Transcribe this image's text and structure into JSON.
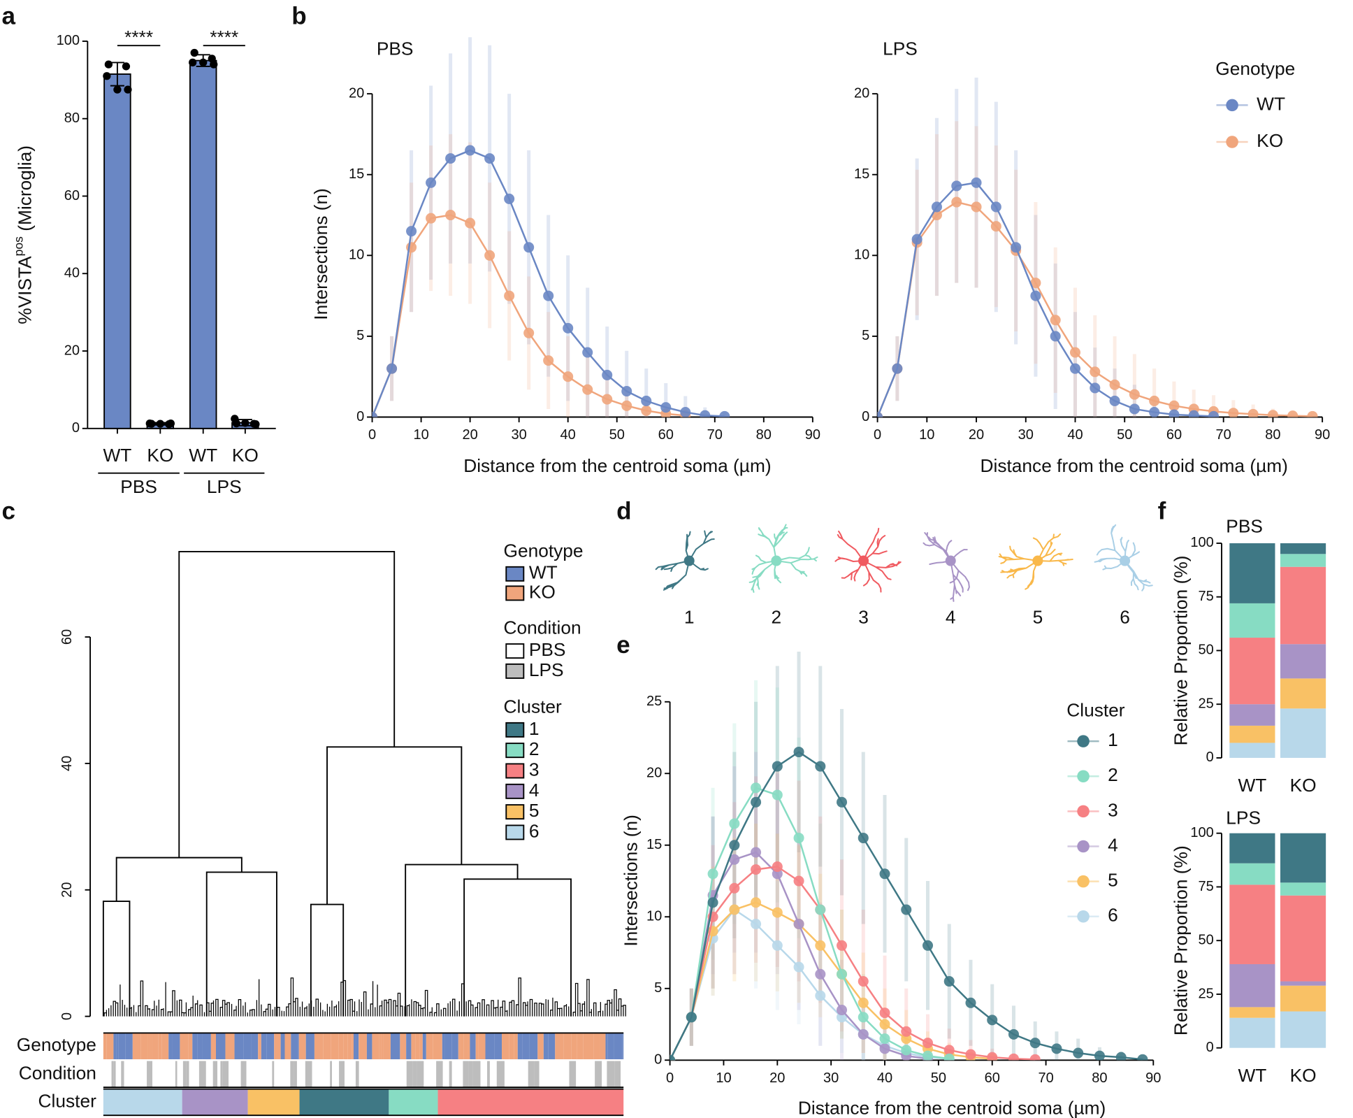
{
  "chart_data": [
    {
      "type": "bar",
      "panel": "a",
      "ylabel": "%VISTA",
      "ylabel_sup": "pos",
      "ylabel_suffix": " (Microglia)",
      "categories": [
        "WT",
        "KO",
        "WT",
        "KO"
      ],
      "groups": [
        "PBS",
        "LPS"
      ],
      "values": [
        91.5,
        1.2,
        95,
        1.5
      ],
      "errors": [
        3,
        0.3,
        1.5,
        0.8
      ],
      "points": [
        [
          94,
          93.5,
          91,
          87.5,
          87.5
        ],
        [
          1.2,
          1.1,
          1.3,
          1.2,
          1.3
        ],
        [
          97,
          95.5,
          94.5,
          94.5,
          94
        ],
        [
          1.3,
          1.2,
          2.5,
          1.4,
          1.1
        ]
      ],
      "color": "#6a87c4",
      "significance": [
        "****",
        "****"
      ],
      "ylim": [
        0,
        100
      ],
      "yticks": [
        0,
        20,
        40,
        60,
        80,
        100
      ]
    },
    {
      "type": "line",
      "panel": "b",
      "title": "PBS",
      "xlabel": "Distance from the centroid soma (µm)",
      "ylabel": "Intersections (n)",
      "x": [
        0,
        4,
        8,
        12,
        16,
        20,
        24,
        28,
        32,
        36,
        40,
        44,
        48,
        52,
        56,
        60,
        64,
        68,
        72,
        76,
        80,
        84,
        88
      ],
      "series": [
        {
          "name": "WT",
          "color": "#6a87c4",
          "values": [
            0,
            3,
            11.5,
            14.5,
            16,
            16.5,
            16,
            13.5,
            10.5,
            7.5,
            5.5,
            4,
            2.6,
            1.6,
            1,
            0.6,
            0.3,
            0.1,
            0.05,
            null,
            null,
            null,
            null
          ],
          "errors": [
            0,
            2,
            5,
            6,
            6.5,
            7,
            7,
            6.5,
            6,
            5,
            4.5,
            4,
            3,
            2.5,
            2,
            1.5,
            1,
            0.5,
            0.2,
            null,
            null,
            null,
            null
          ]
        },
        {
          "name": "KO",
          "color": "#f0a57c",
          "values": [
            0,
            3,
            10.5,
            12.3,
            12.5,
            12,
            10,
            7.5,
            5.2,
            3.5,
            2.5,
            1.7,
            1.1,
            0.7,
            0.4,
            0.2,
            0.1,
            null,
            null,
            null,
            null,
            null,
            null
          ],
          "errors": [
            0,
            2,
            4,
            4.5,
            5,
            5,
            4.5,
            4,
            3.5,
            3,
            2.5,
            2,
            1.5,
            1,
            0.6,
            0.3,
            0.1,
            null,
            null,
            null,
            null,
            null,
            null
          ]
        }
      ],
      "xlim": [
        0,
        90
      ],
      "xticks": [
        0,
        10,
        20,
        30,
        40,
        50,
        60,
        70,
        80,
        90
      ],
      "ylim": [
        0,
        20
      ],
      "yticks": [
        0,
        5,
        10,
        15,
        20
      ]
    },
    {
      "type": "line",
      "title": "LPS",
      "xlabel": "Distance from the centroid soma (µm)",
      "legend_title": "Genotype",
      "x": [
        0,
        4,
        8,
        12,
        16,
        20,
        24,
        28,
        32,
        36,
        40,
        44,
        48,
        52,
        56,
        60,
        64,
        68,
        72,
        76,
        80,
        84,
        88
      ],
      "series": [
        {
          "name": "WT",
          "color": "#6a87c4",
          "values": [
            0,
            3,
            11,
            13,
            14.3,
            14.5,
            13,
            10.5,
            7.5,
            5,
            3,
            1.8,
            1,
            0.5,
            0.3,
            0.15,
            0.1,
            0.05,
            null,
            null,
            null,
            null,
            null
          ],
          "errors": [
            0,
            2,
            5,
            5.5,
            6,
            6.5,
            6.5,
            6,
            5,
            4.5,
            3.5,
            2.5,
            2,
            1.5,
            1,
            0.6,
            0.3,
            0.1,
            null,
            null,
            null,
            null,
            null
          ]
        },
        {
          "name": "KO",
          "color": "#f0a57c",
          "values": [
            0,
            3,
            10.8,
            12.5,
            13.3,
            13,
            11.8,
            10.3,
            8.3,
            6,
            4,
            2.8,
            2,
            1.4,
            1,
            0.7,
            0.5,
            0.35,
            0.25,
            0.18,
            0.12,
            0.08,
            0.05
          ],
          "errors": [
            0,
            2,
            4.5,
            5,
            5,
            5,
            5,
            5,
            5,
            4.5,
            4,
            3.5,
            3,
            2.5,
            2,
            1.5,
            1.2,
            1,
            0.8,
            0.6,
            0.4,
            0.3,
            0.2
          ]
        }
      ],
      "xlim": [
        0,
        90
      ],
      "xticks": [
        0,
        10,
        20,
        30,
        40,
        50,
        60,
        70,
        80,
        90
      ],
      "ylim": [
        0,
        20
      ],
      "yticks": [
        0,
        5,
        10,
        15,
        20
      ]
    },
    {
      "type": "dendrogram",
      "panel": "c",
      "merges": [
        {
          "left": 0,
          "right": 1,
          "height": 18.2
        },
        {
          "left": 2,
          "right": 3,
          "height": 22.8
        },
        {
          "left": 9,
          "right": 10,
          "height": 25.1
        },
        {
          "left": 4,
          "right": 5,
          "height": 17.7
        },
        {
          "left": 7,
          "right": 8,
          "height": 21.7
        },
        {
          "left": 6,
          "right": 13,
          "height": 24
        },
        {
          "left": 12,
          "right": 14,
          "height": 42.6
        },
        {
          "left": 11,
          "right": 15,
          "height": 73.5
        }
      ],
      "rows": [
        "Genotype",
        "Condition",
        "Cluster"
      ],
      "legends": [
        {
          "title": "Genotype",
          "items": [
            {
              "name": "WT",
              "color": "#6a87c4"
            },
            {
              "name": "KO",
              "color": "#f0a57c"
            }
          ]
        },
        {
          "title": "Condition",
          "items": [
            {
              "name": "PBS",
              "color": "#ffffff"
            },
            {
              "name": "LPS",
              "color": "#bdbdbd"
            }
          ]
        },
        {
          "title": "Cluster",
          "items": [
            {
              "name": "1",
              "color": "#3f7885"
            },
            {
              "name": "2",
              "color": "#87dcc3"
            },
            {
              "name": "3",
              "color": "#f68083"
            },
            {
              "name": "4",
              "color": "#a893c6"
            },
            {
              "name": "5",
              "color": "#f9c165"
            },
            {
              "name": "6",
              "color": "#b8d8ea"
            }
          ]
        }
      ],
      "ylim": [
        0,
        60
      ],
      "yticks": [
        0,
        20,
        40,
        60
      ]
    },
    {
      "type": "images",
      "panel": "d",
      "labels": [
        "1",
        "2",
        "3",
        "4",
        "5",
        "6"
      ],
      "colors": [
        "#3f7885",
        "#87dcc3",
        "#f05a60",
        "#a893c6",
        "#f9b84a",
        "#a9cfe6"
      ]
    },
    {
      "type": "line",
      "panel": "e",
      "xlabel": "Distance from the centroid soma (µm)",
      "ylabel": "Intersections (n)",
      "legend_title": "Cluster",
      "x": [
        0,
        4,
        8,
        12,
        16,
        20,
        24,
        28,
        32,
        36,
        40,
        44,
        48,
        52,
        56,
        60,
        64,
        68,
        72,
        76,
        80,
        84,
        88
      ],
      "series": [
        {
          "name": "1",
          "color": "#3f7885",
          "values": [
            0,
            3,
            11,
            15,
            18,
            20.5,
            21.5,
            20.5,
            18,
            15.5,
            13,
            10.5,
            8,
            5.5,
            4,
            2.8,
            1.8,
            1.2,
            0.8,
            0.5,
            0.3,
            0.2,
            0.05
          ],
          "errors": [
            0,
            2,
            6,
            6.5,
            7,
            7,
            7,
            7,
            6.5,
            6,
            5.5,
            5,
            4.5,
            4,
            3,
            2.5,
            2,
            1.5,
            1.2,
            1,
            0.6,
            0.4,
            0.1
          ]
        },
        {
          "name": "2",
          "color": "#87dcc3",
          "values": [
            0,
            3,
            13,
            16.5,
            19,
            18.5,
            15.5,
            10.5,
            6,
            3,
            1.5,
            0.7,
            0.3,
            0.1,
            null,
            null,
            null,
            null,
            null,
            null,
            null,
            null,
            null
          ],
          "errors": [
            0,
            2,
            6,
            7,
            7.5,
            7.5,
            7,
            6,
            4.5,
            3,
            2,
            1,
            0.5,
            0.2,
            null,
            null,
            null,
            null,
            null,
            null,
            null,
            null,
            null
          ]
        },
        {
          "name": "3",
          "color": "#f68083",
          "values": [
            0,
            3,
            10,
            12,
            13.3,
            13.5,
            12.5,
            10.5,
            8,
            5.5,
            3.3,
            2,
            1.2,
            0.7,
            0.4,
            0.2,
            0.1,
            0.05,
            null,
            null,
            null,
            null,
            null
          ],
          "errors": [
            0,
            2,
            5,
            6,
            6.5,
            7,
            7,
            6.5,
            6,
            5,
            4,
            3,
            2,
            1.5,
            1,
            0.6,
            0.3,
            0.1,
            null,
            null,
            null,
            null,
            null
          ]
        },
        {
          "name": "4",
          "color": "#a893c6",
          "values": [
            0,
            3,
            11.5,
            14,
            14.5,
            13,
            9.5,
            6,
            3.5,
            1.8,
            0.8,
            0.3,
            0.1,
            null,
            null,
            null,
            null,
            null,
            null,
            null,
            null,
            null,
            null
          ],
          "errors": [
            0,
            2,
            5.5,
            6.5,
            7,
            7,
            6,
            5,
            3.5,
            2.5,
            1.5,
            0.8,
            0.3,
            null,
            null,
            null,
            null,
            null,
            null,
            null,
            null,
            null,
            null
          ]
        },
        {
          "name": "5",
          "color": "#f9c165",
          "values": [
            0,
            3,
            9,
            10.5,
            11,
            10.3,
            9.5,
            8,
            6,
            4,
            2.5,
            1.5,
            0.8,
            0.4,
            0.2,
            0.1,
            null,
            null,
            null,
            null,
            null,
            null,
            null
          ],
          "errors": [
            0,
            2,
            4.5,
            5,
            5.5,
            5.5,
            5.5,
            5,
            4.5,
            3.5,
            2.5,
            2,
            1.2,
            0.8,
            0.5,
            0.2,
            null,
            null,
            null,
            null,
            null,
            null,
            null
          ]
        },
        {
          "name": "6",
          "color": "#b8d8ea",
          "values": [
            0,
            3,
            8.5,
            10.5,
            9.5,
            8,
            6.5,
            4.5,
            3,
            1.8,
            1,
            0.5,
            0.2,
            0.1,
            null,
            null,
            null,
            null,
            null,
            null,
            null,
            null,
            null
          ],
          "errors": [
            0,
            2,
            4,
            4.5,
            4.5,
            4.5,
            4,
            3.5,
            2.5,
            1.8,
            1.2,
            0.7,
            0.3,
            0.1,
            null,
            null,
            null,
            null,
            null,
            null,
            null,
            null,
            null
          ]
        }
      ],
      "xlim": [
        0,
        90
      ],
      "xticks": [
        0,
        10,
        20,
        30,
        40,
        50,
        60,
        70,
        80,
        90
      ],
      "ylim": [
        0,
        25
      ],
      "yticks": [
        0,
        5,
        10,
        15,
        20,
        25
      ]
    },
    {
      "type": "stacked_bar",
      "panel": "f",
      "title": "PBS",
      "ylabel": "Relative Proportion (%)",
      "categories": [
        "WT",
        "KO"
      ],
      "series": [
        {
          "color": "#3f7885",
          "values": [
            28,
            5
          ]
        },
        {
          "color": "#87dcc3",
          "values": [
            16,
            6
          ]
        },
        {
          "color": "#f68083",
          "values": [
            31,
            36
          ]
        },
        {
          "color": "#a893c6",
          "values": [
            10,
            16
          ]
        },
        {
          "color": "#f9c165",
          "values": [
            8,
            14
          ]
        },
        {
          "color": "#b8d8ea",
          "values": [
            7,
            23
          ]
        }
      ],
      "ylim": [
        0,
        100
      ],
      "yticks": [
        0,
        25,
        50,
        75,
        100
      ]
    },
    {
      "type": "stacked_bar",
      "title": "LPS",
      "ylabel": "Relative Proportion (%)",
      "categories": [
        "WT",
        "KO"
      ],
      "series": [
        {
          "color": "#3f7885",
          "values": [
            14,
            23
          ]
        },
        {
          "color": "#87dcc3",
          "values": [
            10,
            6
          ]
        },
        {
          "color": "#f68083",
          "values": [
            37,
            40
          ]
        },
        {
          "color": "#a893c6",
          "values": [
            20,
            2
          ]
        },
        {
          "color": "#f9c165",
          "values": [
            5,
            12
          ]
        },
        {
          "color": "#b8d8ea",
          "values": [
            14,
            17
          ]
        }
      ],
      "ylim": [
        0,
        100
      ],
      "yticks": [
        0,
        25,
        50,
        75,
        100
      ]
    }
  ]
}
